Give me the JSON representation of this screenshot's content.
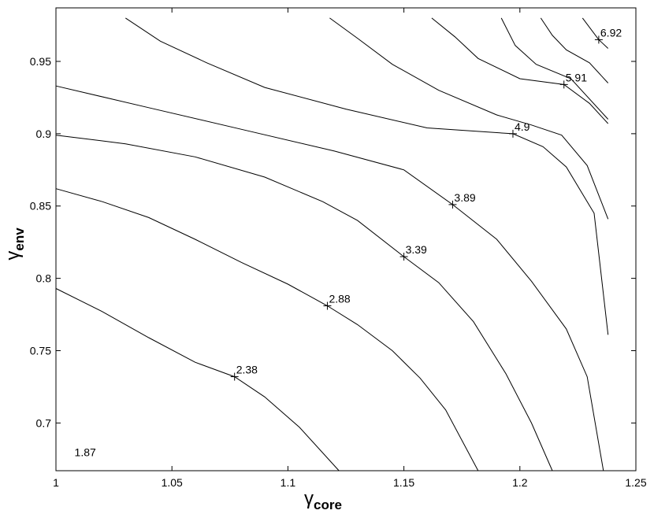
{
  "chart_data": {
    "type": "contour",
    "xlabel": {
      "base": "γ",
      "sub": "core"
    },
    "ylabel": {
      "base": "γ",
      "sub": "env"
    },
    "xlim": [
      1.0,
      1.25
    ],
    "ylim": [
      0.667,
      0.987
    ],
    "xticks": [
      {
        "value": 1.0,
        "label": "1"
      },
      {
        "value": 1.05,
        "label": "1.05"
      },
      {
        "value": 1.1,
        "label": "1.1"
      },
      {
        "value": 1.15,
        "label": "1.15"
      },
      {
        "value": 1.2,
        "label": "1.2"
      },
      {
        "value": 1.25,
        "label": "1.25"
      }
    ],
    "yticks": [
      {
        "value": 0.7,
        "label": "0.7"
      },
      {
        "value": 0.75,
        "label": "0.75"
      },
      {
        "value": 0.8,
        "label": "0.8"
      },
      {
        "value": 0.85,
        "label": "0.85"
      },
      {
        "value": 0.9,
        "label": "0.9"
      },
      {
        "value": 0.95,
        "label": "0.95"
      }
    ],
    "corner_label": {
      "text": "1.87",
      "x": 1.008,
      "y": 0.677
    },
    "contours": [
      {
        "level": "2.38",
        "label_at": [
          1.077,
          0.732
        ],
        "points": [
          [
            1.0,
            0.793
          ],
          [
            1.02,
            0.777
          ],
          [
            1.04,
            0.759
          ],
          [
            1.06,
            0.742
          ],
          [
            1.077,
            0.732
          ],
          [
            1.09,
            0.718
          ],
          [
            1.105,
            0.697
          ],
          [
            1.122,
            0.667
          ]
        ]
      },
      {
        "level": "2.88",
        "label_at": [
          1.117,
          0.781
        ],
        "points": [
          [
            1.0,
            0.862
          ],
          [
            1.02,
            0.853
          ],
          [
            1.04,
            0.842
          ],
          [
            1.06,
            0.827
          ],
          [
            1.08,
            0.811
          ],
          [
            1.1,
            0.796
          ],
          [
            1.117,
            0.781
          ],
          [
            1.13,
            0.768
          ],
          [
            1.145,
            0.75
          ],
          [
            1.157,
            0.731
          ],
          [
            1.168,
            0.709
          ],
          [
            1.182,
            0.667
          ]
        ]
      },
      {
        "level": "3.39",
        "label_at": [
          1.15,
          0.815
        ],
        "points": [
          [
            1.0,
            0.899
          ],
          [
            1.03,
            0.893
          ],
          [
            1.06,
            0.884
          ],
          [
            1.09,
            0.87
          ],
          [
            1.115,
            0.853
          ],
          [
            1.13,
            0.84
          ],
          [
            1.15,
            0.815
          ],
          [
            1.165,
            0.797
          ],
          [
            1.18,
            0.77
          ],
          [
            1.194,
            0.734
          ],
          [
            1.205,
            0.7
          ],
          [
            1.214,
            0.667
          ]
        ]
      },
      {
        "level": "3.89",
        "label_at": [
          1.171,
          0.851
        ],
        "points": [
          [
            1.0,
            0.933
          ],
          [
            1.04,
            0.918
          ],
          [
            1.08,
            0.903
          ],
          [
            1.12,
            0.888
          ],
          [
            1.15,
            0.875
          ],
          [
            1.171,
            0.851
          ],
          [
            1.19,
            0.827
          ],
          [
            1.205,
            0.798
          ],
          [
            1.22,
            0.765
          ],
          [
            1.229,
            0.732
          ],
          [
            1.236,
            0.667
          ]
        ]
      },
      {
        "level": "4.9",
        "label_at": [
          1.197,
          0.9
        ],
        "points": [
          [
            1.03,
            0.98
          ],
          [
            1.045,
            0.964
          ],
          [
            1.065,
            0.949
          ],
          [
            1.09,
            0.932
          ],
          [
            1.125,
            0.917
          ],
          [
            1.16,
            0.904
          ],
          [
            1.197,
            0.9
          ],
          [
            1.21,
            0.891
          ],
          [
            1.22,
            0.877
          ],
          [
            1.232,
            0.845
          ],
          [
            1.238,
            0.761
          ]
        ]
      },
      {
        "level": "5.91",
        "label_at": [
          1.219,
          0.934
        ],
        "points": [
          [
            1.118,
            0.98
          ],
          [
            1.13,
            0.966
          ],
          [
            1.145,
            0.948
          ],
          [
            1.165,
            0.93
          ],
          [
            1.19,
            0.913
          ],
          [
            1.205,
            0.906
          ],
          [
            1.218,
            0.899
          ],
          [
            1.229,
            0.878
          ],
          [
            1.238,
            0.841
          ]
        ]
      },
      {
        "level": "6.92",
        "label_at": [
          1.234,
          0.965
        ],
        "points": [
          [
            1.162,
            0.98
          ],
          [
            1.172,
            0.967
          ],
          [
            1.182,
            0.952
          ],
          [
            1.2,
            0.938
          ],
          [
            1.219,
            0.934
          ],
          [
            1.23,
            0.921
          ],
          [
            1.238,
            0.907
          ]
        ]
      },
      {
        "level": "",
        "label_at": null,
        "points": [
          [
            1.192,
            0.98
          ],
          [
            1.198,
            0.961
          ],
          [
            1.207,
            0.948
          ],
          [
            1.222,
            0.938
          ],
          [
            1.238,
            0.91
          ]
        ]
      },
      {
        "level": "",
        "label_at": null,
        "points": [
          [
            1.209,
            0.98
          ],
          [
            1.214,
            0.968
          ],
          [
            1.22,
            0.958
          ],
          [
            1.23,
            0.949
          ],
          [
            1.238,
            0.935
          ]
        ]
      },
      {
        "level": "",
        "label_at": null,
        "points": [
          [
            1.227,
            0.98
          ],
          [
            1.234,
            0.965
          ],
          [
            1.238,
            0.959
          ]
        ]
      }
    ]
  }
}
